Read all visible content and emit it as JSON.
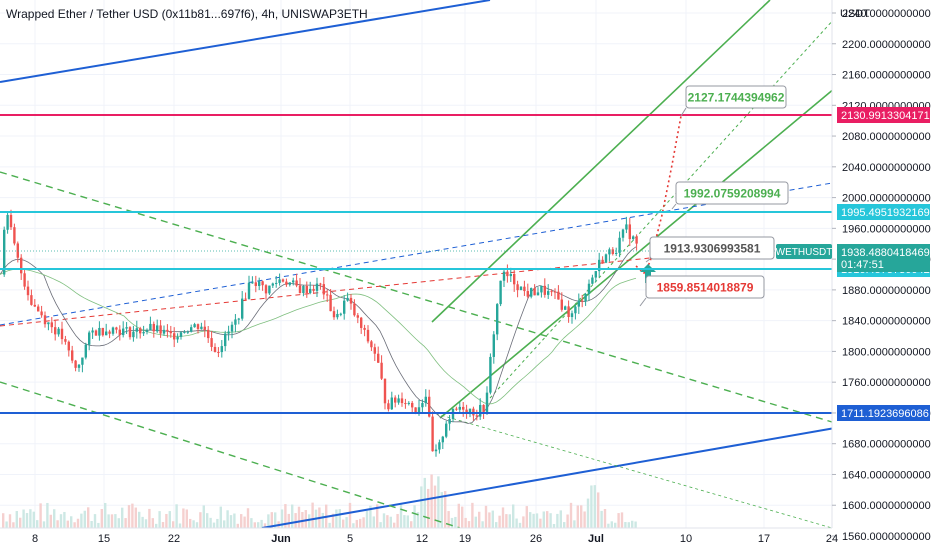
{
  "header": {
    "title": "Wrapped Ether / Tether USD (0x11b81...697f6), 4h, UNISWAP3ETH"
  },
  "price_axis": {
    "currency": "USDT",
    "ticks": [
      "2240.0000000000",
      "2200.0000000000",
      "2160.0000000000",
      "2120.0000000000",
      "2080.0000000000",
      "2040.0000000000",
      "2000.0000000000",
      "1960.0000000000",
      "1920.0000000000",
      "1880.0000000000",
      "1840.0000000000",
      "1800.0000000000",
      "1760.0000000000",
      "1720.0000000000",
      "1680.0000000000",
      "1640.0000000000",
      "1600.0000000000",
      "1560.0000000000"
    ]
  },
  "time_axis": {
    "ticks": [
      "8",
      "15",
      "22",
      "Jun",
      "5",
      "12",
      "19",
      "26",
      "Jul",
      "10",
      "17",
      "24"
    ]
  },
  "levels": [
    {
      "label": "2130.9913304171",
      "color": "#e91e63"
    },
    {
      "label": "1995.4951932169",
      "color": "#26c6da"
    },
    {
      "label": "1916.4575730042",
      "color": "#26c6da"
    },
    {
      "label": "1711.1923696086",
      "color": "#1e5fd4"
    }
  ],
  "last_price": {
    "symbol": "WETHUSDT",
    "price": "1938.4880418469",
    "countdown": "01:47:51",
    "color": "#26a69a"
  },
  "callouts": [
    {
      "text": "2127.1744394962",
      "color": "#4caf50"
    },
    {
      "text": "1992.0759208994",
      "color": "#4caf50"
    },
    {
      "text": "1913.9306993581",
      "color": "#555555"
    },
    {
      "text": "1859.8514018879",
      "color": "#e53935"
    }
  ],
  "chart_data": {
    "type": "candlestick",
    "interval": "4h",
    "ylim": [
      1550,
      2280
    ],
    "y_ticks": [
      2240,
      2200,
      2160,
      2120,
      2080,
      2040,
      2000,
      1960,
      1920,
      1880,
      1840,
      1800,
      1760,
      1720,
      1680,
      1640,
      1600,
      1560
    ],
    "x_tick_labels": [
      "8",
      "15",
      "22",
      "Jun",
      "5",
      "12",
      "19",
      "26",
      "Jul",
      "10",
      "17",
      "24"
    ],
    "close_path_approx": [
      [
        0,
        1900
      ],
      [
        4,
        1985
      ],
      [
        10,
        1955
      ],
      [
        18,
        1910
      ],
      [
        30,
        1865
      ],
      [
        45,
        1840
      ],
      [
        60,
        1820
      ],
      [
        75,
        1775
      ],
      [
        90,
        1825
      ],
      [
        110,
        1830
      ],
      [
        130,
        1825
      ],
      [
        150,
        1830
      ],
      [
        170,
        1820
      ],
      [
        185,
        1830
      ],
      [
        200,
        1835
      ],
      [
        215,
        1800
      ],
      [
        235,
        1840
      ],
      [
        250,
        1895
      ],
      [
        265,
        1880
      ],
      [
        280,
        1895
      ],
      [
        300,
        1880
      ],
      [
        320,
        1885
      ],
      [
        335,
        1840
      ],
      [
        345,
        1870
      ],
      [
        360,
        1830
      ],
      [
        375,
        1795
      ],
      [
        385,
        1730
      ],
      [
        400,
        1740
      ],
      [
        415,
        1725
      ],
      [
        425,
        1745
      ],
      [
        432,
        1660
      ],
      [
        438,
        1675
      ],
      [
        445,
        1710
      ],
      [
        460,
        1730
      ],
      [
        475,
        1720
      ],
      [
        485,
        1730
      ],
      [
        490,
        1800
      ],
      [
        500,
        1900
      ],
      [
        510,
        1895
      ],
      [
        525,
        1875
      ],
      [
        540,
        1880
      ],
      [
        555,
        1870
      ],
      [
        570,
        1845
      ],
      [
        585,
        1880
      ],
      [
        600,
        1920
      ],
      [
        615,
        1935
      ],
      [
        625,
        1960
      ],
      [
        635,
        1940
      ]
    ],
    "levels": [
      2130.9913304171,
      1995.4951932169,
      1916.4575730042,
      1711.1923696086
    ],
    "last_price": 1938.4880418469,
    "annotations": [
      2127.1744394962,
      1992.0759208994,
      1913.9306993581,
      1859.8514018879
    ]
  }
}
